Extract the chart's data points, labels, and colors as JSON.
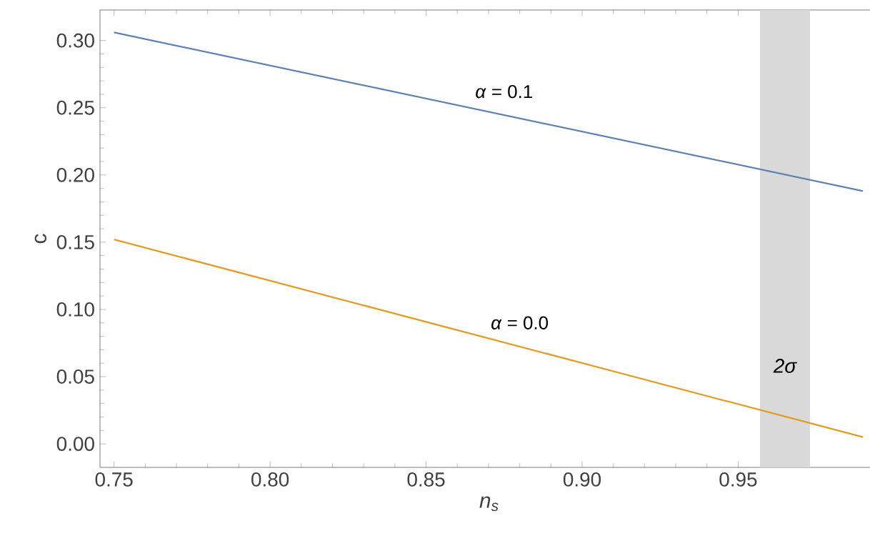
{
  "chart_data": {
    "type": "line",
    "xlabel": "n$_{s}$",
    "ylabel": "c",
    "x": [
      0.75,
      0.99
    ],
    "series": [
      {
        "color": "#5e81b5",
        "values": [
          0.306,
          0.188
        ]
      },
      {
        "color": "#e19c24",
        "values": [
          0.152,
          0.005
        ]
      }
    ],
    "xlim": [
      0.7455,
      0.995
    ],
    "ylim": [
      -0.0175,
      0.3227
    ],
    "xticks": [
      0.75,
      {
        "value": 0.8,
        "label": "0.80"
      },
      0.85,
      {
        "value": 0.9,
        "label": "0.90"
      },
      0.95
    ],
    "yticks": [
      {
        "value": 0,
        "label": "0.00"
      },
      {
        "value": 0.05,
        "label": "0.05"
      },
      {
        "value": 0.1,
        "label": "0.10"
      },
      {
        "value": 0.15,
        "label": "0.15"
      },
      {
        "value": 0.2,
        "label": "0.20"
      },
      {
        "value": 0.25,
        "label": "0.25"
      },
      {
        "value": 0.3,
        "label": "0.30"
      }
    ],
    "bands": [
      {
        "axis": "x",
        "from": 0.957,
        "to": 0.973,
        "label": "2σ",
        "color": "#d9d9d9"
      }
    ],
    "annotations": [
      "*α* = 0.1",
      "*α* = 0.0"
    ],
    "grid": false,
    "marker": "none",
    "line_style": "solid"
  }
}
